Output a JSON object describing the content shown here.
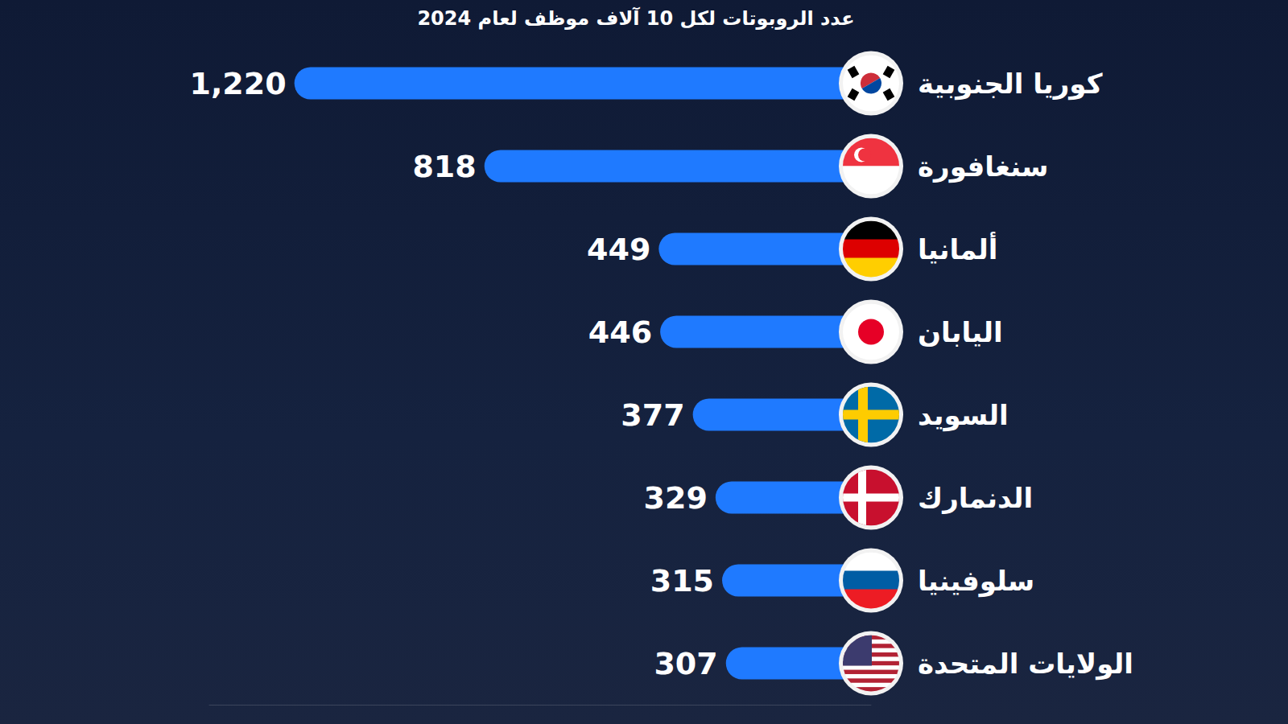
{
  "chart_data": {
    "type": "bar",
    "orientation": "horizontal",
    "title": "عدد الروبوتات لكل 10 آلاف موظف لعام 2024",
    "categories": [
      "كوريا الجنوبية",
      "سنغافورة",
      "ألمانيا",
      "اليابان",
      "السويد",
      "الدنمارك",
      "سلوفينيا",
      "الولايات المتحدة"
    ],
    "values": [
      1220,
      818,
      449,
      446,
      377,
      329,
      315,
      307
    ],
    "value_labels": [
      "1,220",
      "818",
      "449",
      "446",
      "377",
      "329",
      "315",
      "307"
    ],
    "xlim": [
      0,
      1400
    ],
    "color": "#1f7aff",
    "data_labels": true,
    "tick_labels": "y",
    "grid": false
  }
}
